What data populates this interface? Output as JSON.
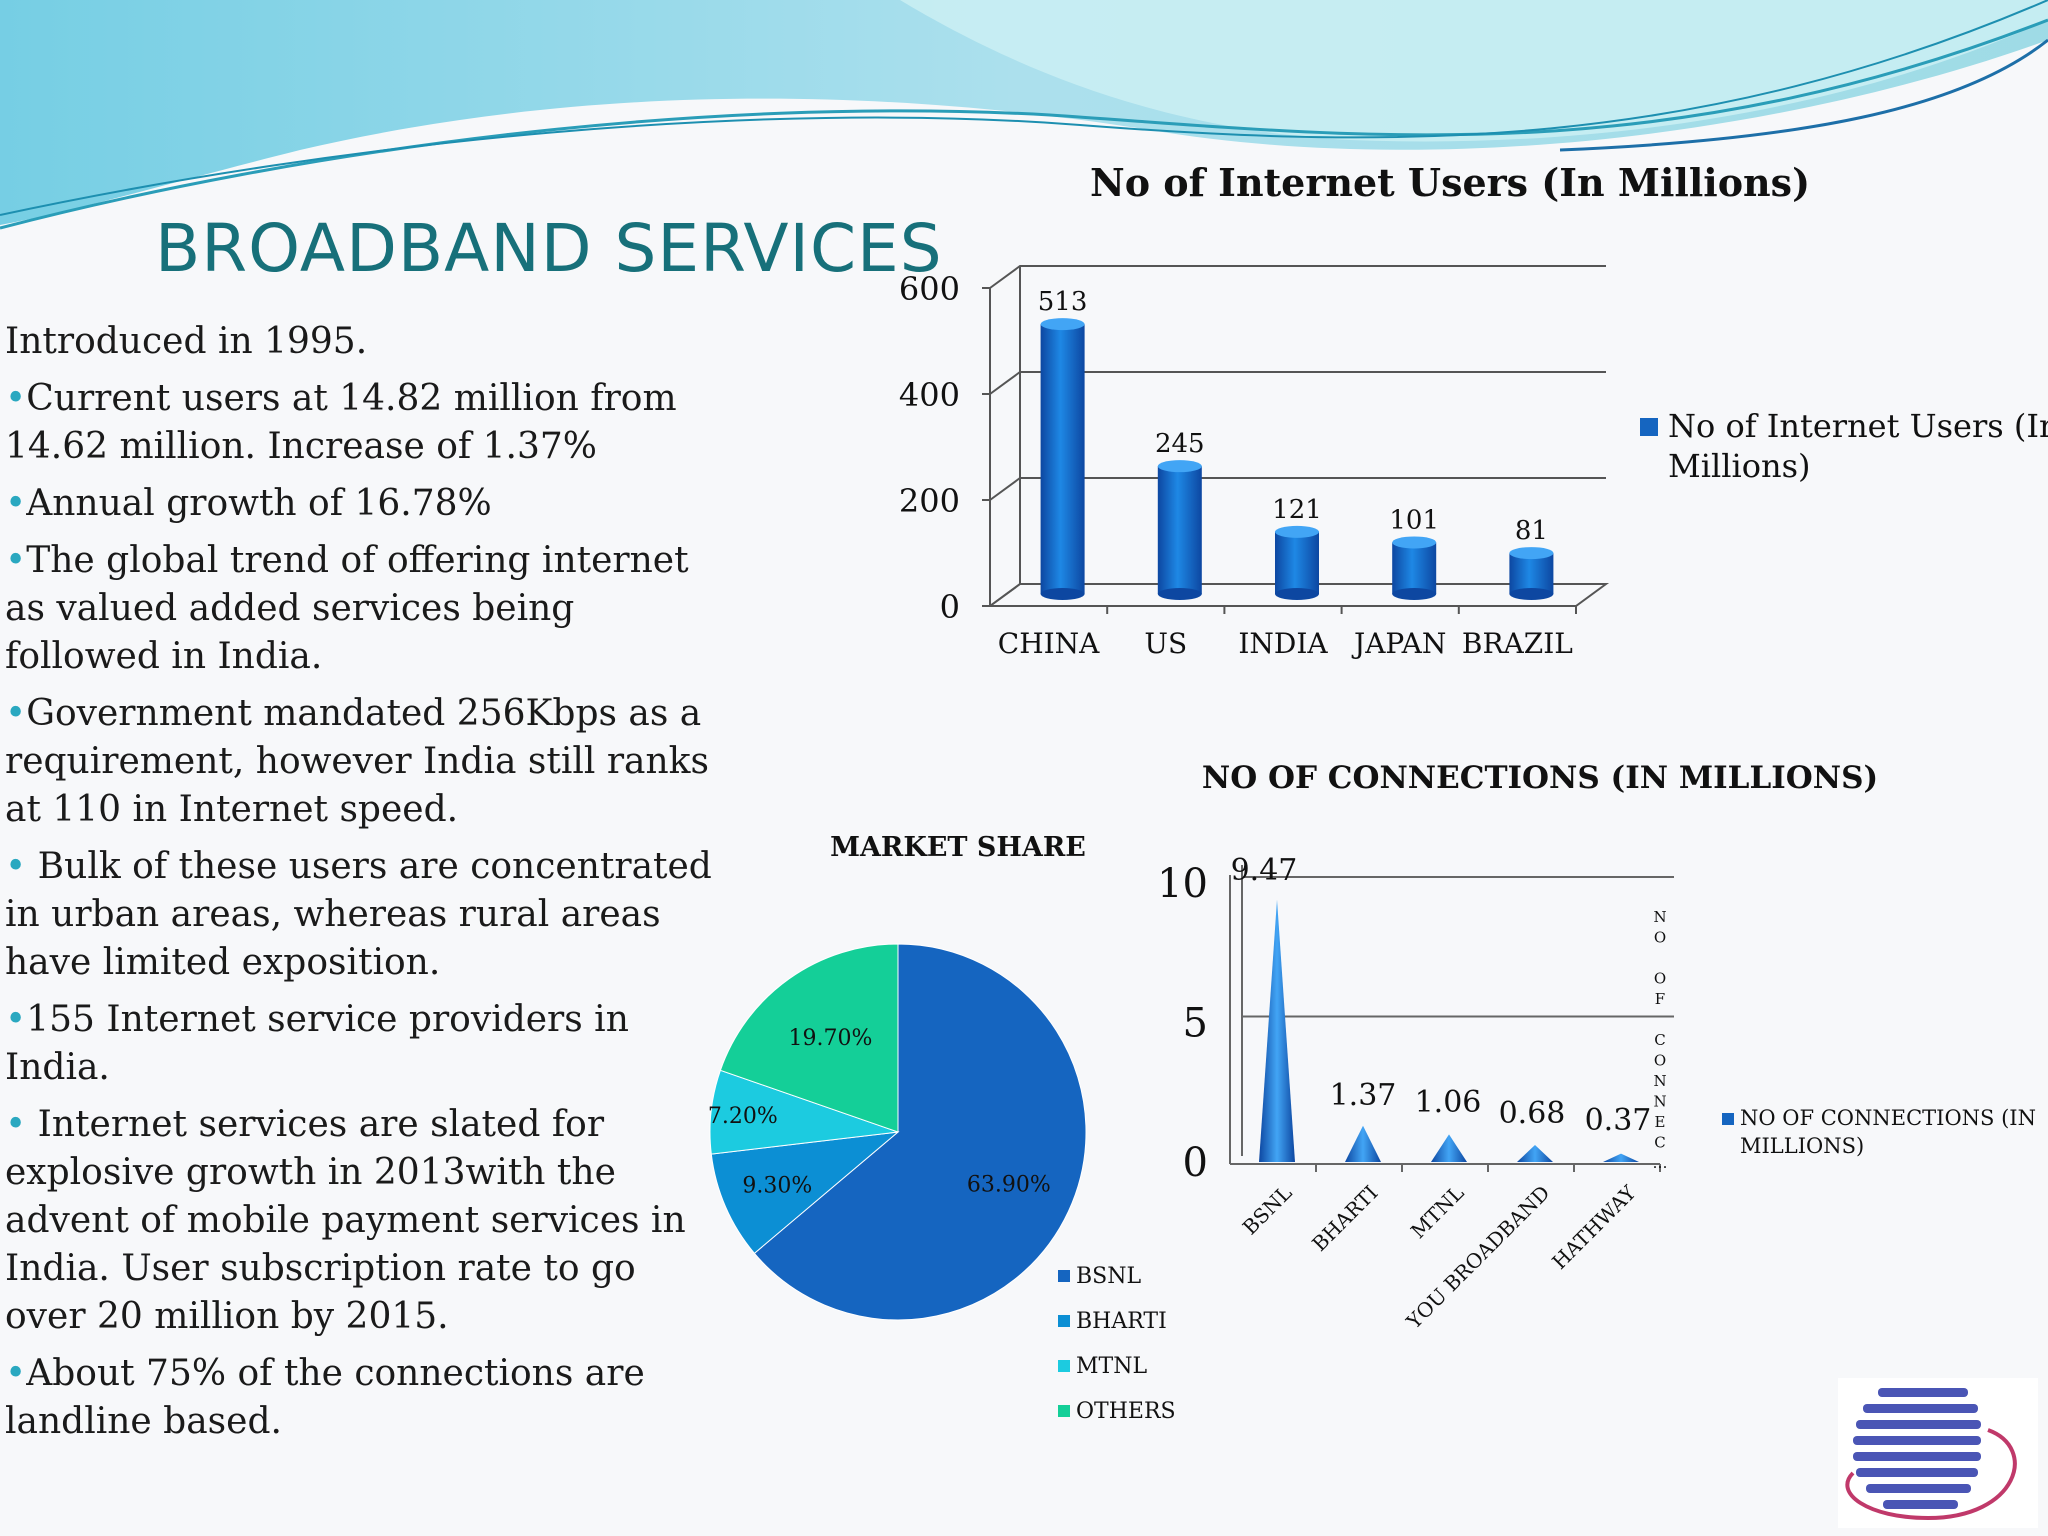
{
  "slide": {
    "title": "BROADBAND SERVICES",
    "bullets": [
      {
        "bullet": false,
        "text": "Introduced in 1995."
      },
      {
        "bullet": true,
        "text": "Current users at 14.82 million from 14.62 million. Increase of 1.37%"
      },
      {
        "bullet": true,
        "text": "Annual growth of 16.78%"
      },
      {
        "bullet": true,
        "text": "The global trend of offering internet as valued added services being followed in India."
      },
      {
        "bullet": true,
        "text": "Government mandated 256Kbps as a requirement, however India still ranks at 110 in Internet speed."
      },
      {
        "bullet": true,
        "text": " Bulk of these users are concentrated in urban areas, whereas rural areas have limited exposition."
      },
      {
        "bullet": true,
        "text": "155 Internet service providers in India."
      },
      {
        "bullet": true,
        "text": " Internet services are slated for explosive growth in 2013with the advent of mobile payment services in India. User subscription rate to go over 20 million by 2015."
      },
      {
        "bullet": true,
        "text": "About 75% of the connections are landline based."
      }
    ],
    "bullet_glyph": "•",
    "colors": {
      "title": "#17707a",
      "bullet": "#2aa8c0",
      "bar": "#1565c0",
      "wave": "#7fd3df"
    },
    "logo_icon": "globe-stripes-logo-icon"
  },
  "chart_data": [
    {
      "type": "bar",
      "title": "No of Internet Users (In Millions)",
      "categories": [
        "CHINA",
        "US",
        "INDIA",
        "JAPAN",
        "BRAZIL"
      ],
      "series": [
        {
          "name": "No of Internet Users (In Millions)",
          "values": [
            513,
            245,
            121,
            101,
            81
          ]
        }
      ],
      "data_labels": [
        "513",
        "245",
        "121",
        "101",
        "81"
      ],
      "ylim": [
        0,
        600
      ],
      "yticks": [
        "0",
        "200",
        "400",
        "600"
      ],
      "grid": true,
      "legend": "right",
      "style": "3d-cylinder"
    },
    {
      "type": "pie",
      "title": "MARKET SHARE",
      "labels": [
        "BSNL",
        "BHARTI",
        "MTNL",
        "OTHERS"
      ],
      "values": [
        63.9,
        9.3,
        7.2,
        19.7
      ],
      "data_labels": [
        "63.90%",
        "9.30%",
        "7.20%",
        "19.70%"
      ],
      "colors": [
        "#1565c0",
        "#0c8fd4",
        "#1ccbe0",
        "#14cf98"
      ],
      "legend": "bottom-right"
    },
    {
      "type": "area",
      "title": "NO OF CONNECTIONS (IN MILLIONS)",
      "categories": [
        "BSNL",
        "BHARTI",
        "MTNL",
        "YOU BROADBAND",
        "HATHWAY"
      ],
      "series": [
        {
          "name": "NO OF CONNECTIONS (IN MILLIONS)",
          "values": [
            9.47,
            1.37,
            1.06,
            0.68,
            0.37
          ]
        }
      ],
      "data_labels": [
        "9.47",
        "1.37",
        "1.06",
        "0.68",
        "0.37"
      ],
      "ylim": [
        0,
        10
      ],
      "yticks": [
        "0",
        "5",
        "10"
      ],
      "axis_label": "NO OF CONNEC...",
      "grid": true,
      "legend": "right",
      "style": "3d-cone"
    }
  ]
}
